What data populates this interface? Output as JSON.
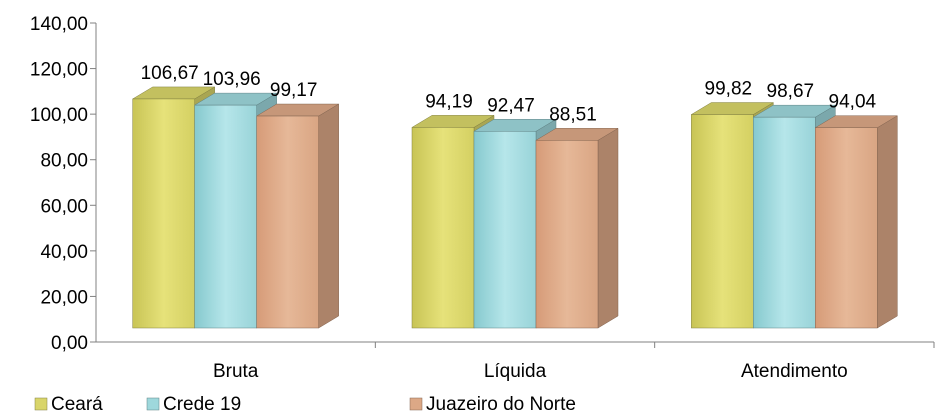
{
  "chart_data": {
    "type": "bar",
    "title": "",
    "xlabel": "",
    "ylabel": "",
    "ylim": [
      0,
      140
    ],
    "y_ticks": [
      "0,00",
      "20,00",
      "40,00",
      "60,00",
      "80,00",
      "100,00",
      "120,00",
      "140,00"
    ],
    "categories": [
      "Bruta",
      "Líquida",
      "Atendimento"
    ],
    "series": [
      {
        "name": "Ceará",
        "values": [
          106.67,
          94.19,
          99.82
        ],
        "labels": [
          "106,67",
          "94,19",
          "99,82"
        ],
        "color": "#d9d56a"
      },
      {
        "name": "Crede 19",
        "values": [
          103.96,
          92.47,
          98.67
        ],
        "labels": [
          "103,96",
          "92,47",
          "98,67"
        ],
        "color": "#9ed8dc"
      },
      {
        "name": "Juazeiro do Norte",
        "values": [
          99.17,
          88.51,
          94.04
        ],
        "labels": [
          "99,17",
          "88,51",
          "94,04"
        ],
        "color": "#dca886"
      }
    ],
    "legend_position": "bottom",
    "grid": false
  }
}
